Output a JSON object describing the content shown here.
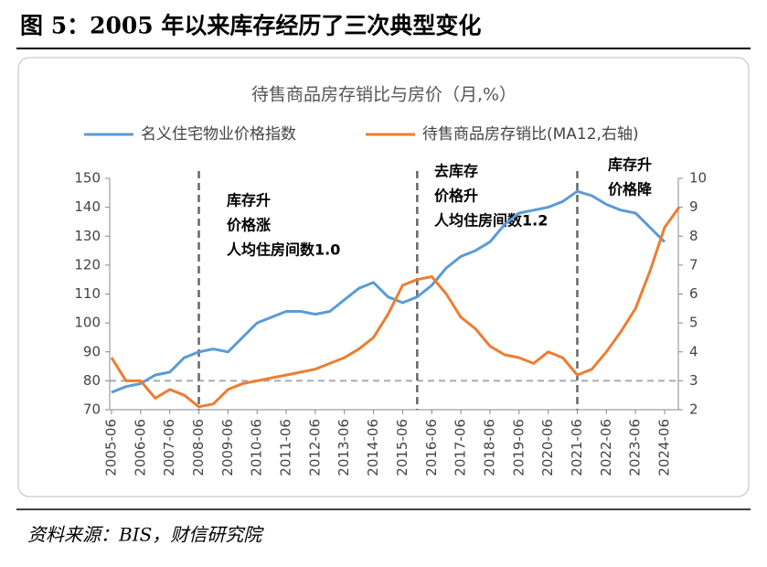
{
  "header": {
    "title": "图 5：2005 年以来库存经历了三次典型变化"
  },
  "source": "资料来源：BIS，财信研究院",
  "chart_data": {
    "type": "line",
    "title": "待售商品房存销比与房价（月,%）",
    "categories": [
      "2005-06",
      null,
      "2006-06",
      null,
      "2007-06",
      null,
      "2008-06",
      null,
      "2009-06",
      null,
      "2010-06",
      null,
      "2011-06",
      null,
      "2012-06",
      null,
      "2013-06",
      null,
      "2014-06",
      null,
      "2015-06",
      null,
      "2016-06",
      null,
      "2017-06",
      null,
      "2018-06",
      null,
      "2019-06",
      null,
      "2020-06",
      null,
      "2021-06",
      null,
      "2022-06",
      null,
      "2023-06",
      null,
      "2024-06",
      null
    ],
    "series": [
      {
        "name": "名义住宅物业价格指数",
        "color": "#5b9bd5",
        "values": [
          76,
          78,
          79,
          82,
          83,
          88,
          90,
          91,
          90,
          95,
          100,
          102,
          104,
          104,
          103,
          104,
          108,
          112,
          114,
          109,
          107,
          109,
          113,
          119,
          123,
          125,
          128,
          134,
          138,
          139,
          140,
          142,
          145.5,
          144,
          141,
          139,
          138,
          133,
          128,
          null
        ]
      },
      {
        "name": "待售商品房存销比(MA12,右轴)",
        "color": "#ed7d31",
        "axis": "y2",
        "values": [
          3.8,
          3.0,
          3.0,
          2.4,
          2.7,
          2.5,
          2.1,
          2.2,
          2.7,
          2.9,
          3.0,
          3.1,
          3.2,
          3.3,
          3.4,
          3.6,
          3.8,
          4.1,
          4.5,
          5.3,
          6.3,
          6.5,
          6.6,
          6.0,
          5.2,
          4.8,
          4.2,
          3.9,
          3.8,
          3.6,
          4.0,
          3.8,
          3.2,
          3.4,
          4.0,
          4.7,
          5.5,
          6.8,
          8.3,
          9.0
        ]
      }
    ],
    "ylim": [
      70,
      150
    ],
    "yticks": [
      70,
      80,
      90,
      100,
      110,
      120,
      130,
      140,
      150
    ],
    "y2lim": [
      2,
      10
    ],
    "y2ticks": [
      2,
      3,
      4,
      5,
      6,
      7,
      8,
      9,
      10
    ],
    "hline": 80,
    "vlines": [
      "2008-06",
      "2015-12",
      "2021-06"
    ],
    "annotations": [
      {
        "lines": [
          "库存升",
          "价格涨",
          "人均住房间数1.0"
        ]
      },
      {
        "lines": [
          "去库存",
          "价格升",
          "人均住房间数1.2"
        ]
      },
      {
        "lines": [
          "库存升",
          "价格降"
        ]
      }
    ],
    "legend": "top"
  }
}
